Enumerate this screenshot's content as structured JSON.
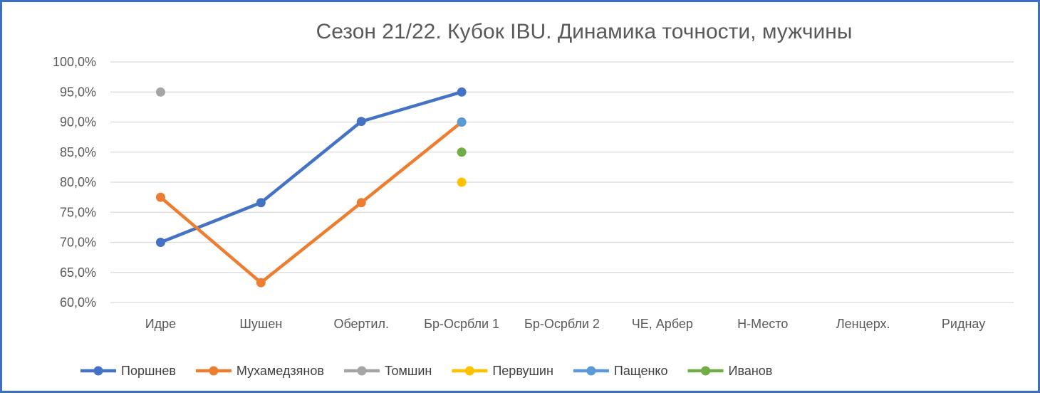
{
  "chart_data": {
    "type": "line",
    "title": "Сезон 21/22. Кубок IBU. Динамика точности, мужчины",
    "xlabel": "",
    "ylabel": "",
    "categories": [
      "Идре",
      "Шушен",
      "Обертил.",
      "Бр-Осрбли 1",
      "Бр-Осрбли 2",
      "ЧЕ, Арбер",
      "Н-Место",
      "Ленцерх.",
      "Риднау"
    ],
    "yticks": [
      "100,0%",
      "95,0%",
      "90,0%",
      "85,0%",
      "80,0%",
      "75,0%",
      "70,0%",
      "65,0%",
      "60,0%"
    ],
    "ylim": [
      60,
      100
    ],
    "grid": true,
    "legend_position": "bottom",
    "series": [
      {
        "name": "Поршнев",
        "color": "#4472c4",
        "values": [
          70.0,
          76.6,
          90.1,
          95.0,
          null,
          null,
          null,
          null,
          null
        ]
      },
      {
        "name": "Мухамедзянов",
        "color": "#ed7d31",
        "values": [
          77.5,
          63.3,
          76.6,
          90.0,
          null,
          null,
          null,
          null,
          null
        ]
      },
      {
        "name": "Томшин",
        "color": "#a5a5a5",
        "values": [
          95.0,
          null,
          null,
          null,
          null,
          null,
          null,
          null,
          null
        ]
      },
      {
        "name": "Первушин",
        "color": "#ffc000",
        "values": [
          null,
          null,
          null,
          80.0,
          null,
          null,
          null,
          null,
          null
        ]
      },
      {
        "name": "Пащенко",
        "color": "#5b9bd5",
        "values": [
          null,
          null,
          null,
          90.0,
          null,
          null,
          null,
          null,
          null
        ]
      },
      {
        "name": "Иванов",
        "color": "#70ad47",
        "values": [
          null,
          null,
          null,
          85.0,
          null,
          null,
          null,
          null,
          null
        ]
      }
    ]
  }
}
